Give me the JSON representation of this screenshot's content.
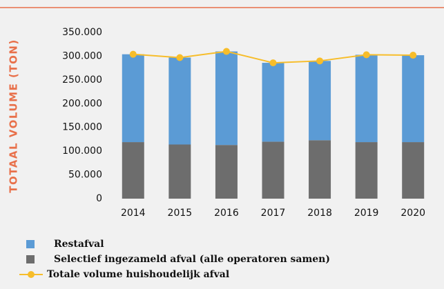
{
  "chart_data": {
    "type": "bar",
    "stacked": true,
    "ylabel": "TOTAAL VOLUME (TON)",
    "categories": [
      "2014",
      "2015",
      "2016",
      "2017",
      "2018",
      "2019",
      "2020"
    ],
    "series": [
      {
        "name": "Restafval",
        "color": "#5b9bd5",
        "values": [
          185000,
          183000,
          197000,
          166000,
          167000,
          184000,
          183000
        ]
      },
      {
        "name": "Selectief ingezameld afval (alle operatoren samen)",
        "color": "#6d6d6d",
        "values": [
          119000,
          114000,
          113000,
          120000,
          123000,
          119000,
          119000
        ]
      },
      {
        "name": "Totale volume huishoudelijk afval",
        "color": "#f7bd2a",
        "type": "line",
        "values": [
          304000,
          297000,
          310000,
          286000,
          290000,
          303000,
          302000
        ]
      }
    ],
    "ylim": [
      0,
      350000
    ],
    "yticks": [
      0,
      {
        "value": 50000,
        "label": "50.000"
      },
      {
        "value": 100000,
        "label": "100.000"
      },
      {
        "value": 150000,
        "label": "150.000"
      },
      {
        "value": 200000,
        "label": "200.000"
      },
      {
        "value": 250000,
        "label": "250.000"
      },
      {
        "value": 300000,
        "label": "300.000"
      },
      {
        "value": 350000,
        "label": "350.000"
      }
    ],
    "grid": false
  }
}
